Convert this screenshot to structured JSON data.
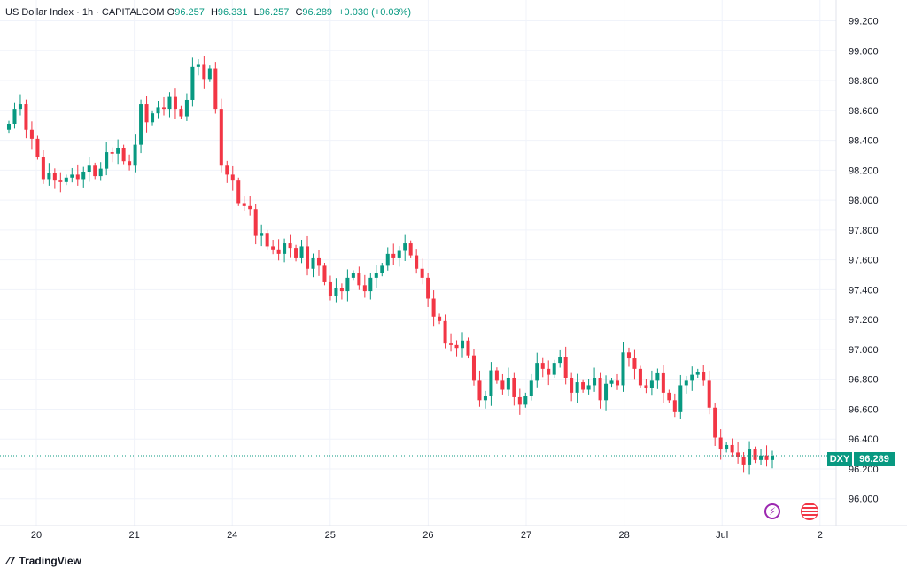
{
  "header": {
    "symbol": "US Dollar Index",
    "interval": "1h",
    "exchange": "CAPITALCOM",
    "open_label": "O",
    "open": "96.257",
    "high_label": "H",
    "high": "96.331",
    "low_label": "L",
    "low": "96.257",
    "close_label": "C",
    "close": "96.289",
    "change": "+0.030 (+0.03%)"
  },
  "price_badge": {
    "ticker": "DXY",
    "price": "96.289"
  },
  "footer": {
    "brand": "TradingView"
  },
  "colors": {
    "up": "#089981",
    "down": "#f23645",
    "grid": "#f0f3fa",
    "text": "#131722"
  },
  "icons": [
    "lightning-icon",
    "us-flag-icon"
  ],
  "chart_data": {
    "type": "candlestick",
    "y_ticks": [
      "96.000",
      "96.200",
      "96.400",
      "96.600",
      "96.800",
      "97.000",
      "97.200",
      "97.400",
      "97.600",
      "97.800",
      "98.000",
      "98.200",
      "98.400",
      "98.600",
      "98.800",
      "99.000",
      "99.200"
    ],
    "x_ticks": [
      "20",
      "21",
      "24",
      "25",
      "26",
      "27",
      "28",
      "Jul",
      "2"
    ],
    "ylim": [
      95.88,
      99.28
    ],
    "last_price": 96.289,
    "closes": [
      98.51,
      98.61,
      98.64,
      98.47,
      98.41,
      98.29,
      98.14,
      98.18,
      98.13,
      98.12,
      98.15,
      98.17,
      98.14,
      98.19,
      98.23,
      98.16,
      98.21,
      98.32,
      98.31,
      98.35,
      98.26,
      98.23,
      98.37,
      98.64,
      98.52,
      98.58,
      98.62,
      98.61,
      98.69,
      98.61,
      98.56,
      98.67,
      98.89,
      98.91,
      98.81,
      98.88,
      98.61,
      98.23,
      98.17,
      98.13,
      97.98,
      97.96,
      97.94,
      97.76,
      97.78,
      97.69,
      97.67,
      97.64,
      97.71,
      97.68,
      97.61,
      97.69,
      97.54,
      97.61,
      97.56,
      97.45,
      97.36,
      97.41,
      97.39,
      97.48,
      97.51,
      97.43,
      97.39,
      97.48,
      97.51,
      97.56,
      97.64,
      97.61,
      97.66,
      97.71,
      97.63,
      97.54,
      97.48,
      97.34,
      97.22,
      97.19,
      97.04,
      97.03,
      97.01,
      97.06,
      96.96,
      96.79,
      96.66,
      96.69,
      96.86,
      96.79,
      96.73,
      96.81,
      96.68,
      96.63,
      96.69,
      96.79,
      96.91,
      96.87,
      96.83,
      96.91,
      96.95,
      96.81,
      96.71,
      96.78,
      96.73,
      96.76,
      96.81,
      96.66,
      96.77,
      96.79,
      96.76,
      96.98,
      96.94,
      96.87,
      96.76,
      96.74,
      96.79,
      96.84,
      96.71,
      96.66,
      96.58,
      96.76,
      96.79,
      96.83,
      96.85,
      96.79,
      96.61,
      96.41,
      96.33,
      96.36,
      96.31,
      96.28,
      96.23,
      96.33,
      96.26,
      96.29,
      96.26,
      96.289
    ]
  }
}
